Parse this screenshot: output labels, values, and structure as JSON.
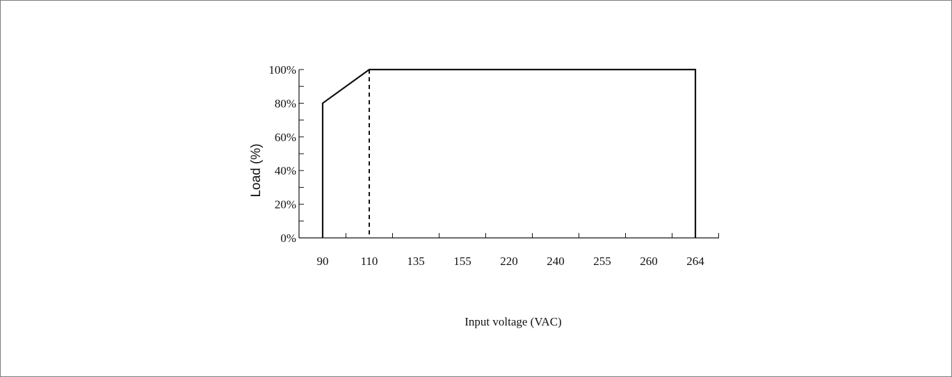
{
  "chart_data": {
    "type": "line",
    "title": "",
    "xlabel": "Input voltage (VAC)",
    "ylabel": "Load (%)",
    "x_categories": [
      "90",
      "110",
      "135",
      "155",
      "220",
      "240",
      "255",
      "260",
      "264"
    ],
    "y_ticks": [
      "0%",
      "20%",
      "40%",
      "60%",
      "80%",
      "100%"
    ],
    "ylim": [
      0,
      100
    ],
    "grid": false,
    "legend": "none",
    "series": [
      {
        "style": "solid",
        "color": "#111111",
        "points": [
          {
            "x": "90",
            "y": 0
          },
          {
            "x": "90",
            "y": 80
          },
          {
            "x": "110",
            "y": 100
          },
          {
            "x": "264",
            "y": 100
          },
          {
            "x": "264",
            "y": 0
          }
        ]
      }
    ],
    "reference_lines": [
      {
        "x": "110",
        "from_y": 0,
        "to_y": 100,
        "style": "dashed",
        "color": "#111111"
      }
    ]
  }
}
